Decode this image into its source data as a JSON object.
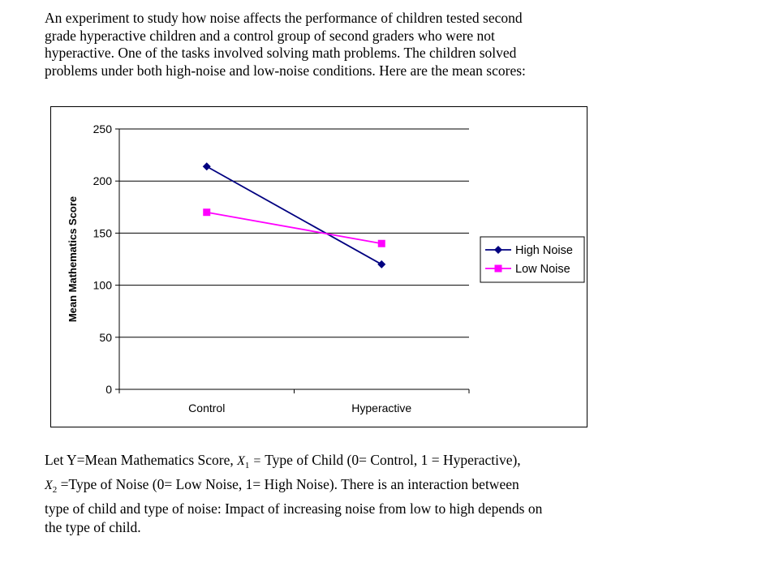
{
  "intro": {
    "lines": [
      "An experiment to study how noise affects the performance of children tested second",
      "grade hyperactive children and a control group of second graders who were not",
      "hyperactive.  One of the tasks involved solving math problems.  The children solved",
      "problems under both high-noise and low-noise conditions.  Here are the mean scores:"
    ]
  },
  "chart_data": {
    "type": "line",
    "categories": [
      "Control",
      "Hyperactive"
    ],
    "series": [
      {
        "name": "High Noise",
        "values": [
          214,
          120
        ],
        "color": "#000080",
        "marker": "diamond"
      },
      {
        "name": "Low Noise",
        "values": [
          170,
          140
        ],
        "color": "#FF00FF",
        "marker": "square"
      }
    ],
    "title": "",
    "xlabel": "",
    "ylabel": "Mean Mathematics Score",
    "ylim": [
      0,
      250
    ],
    "yticks": [
      0,
      50,
      100,
      150,
      200,
      250
    ],
    "ytick_labels": [
      "0",
      "50",
      "100",
      "150",
      "200",
      "250"
    ],
    "grid": true,
    "legend": "right"
  },
  "outro": {
    "line1_a": "Let Y=Mean Mathematics Score, ",
    "x1_var": "X",
    "x1_sub": "1",
    "x1_eq": " = ",
    "line1_b": " Type of Child (0= Control, 1 = Hyperactive),",
    "x2_var": "X",
    "x2_sub": "2",
    "line2": " =Type of Noise (0= Low Noise, 1= High Noise).  There is an interaction between",
    "line3": "type of child and type of noise: Impact of increasing noise from low to high depends on",
    "line4": "the type of child."
  }
}
